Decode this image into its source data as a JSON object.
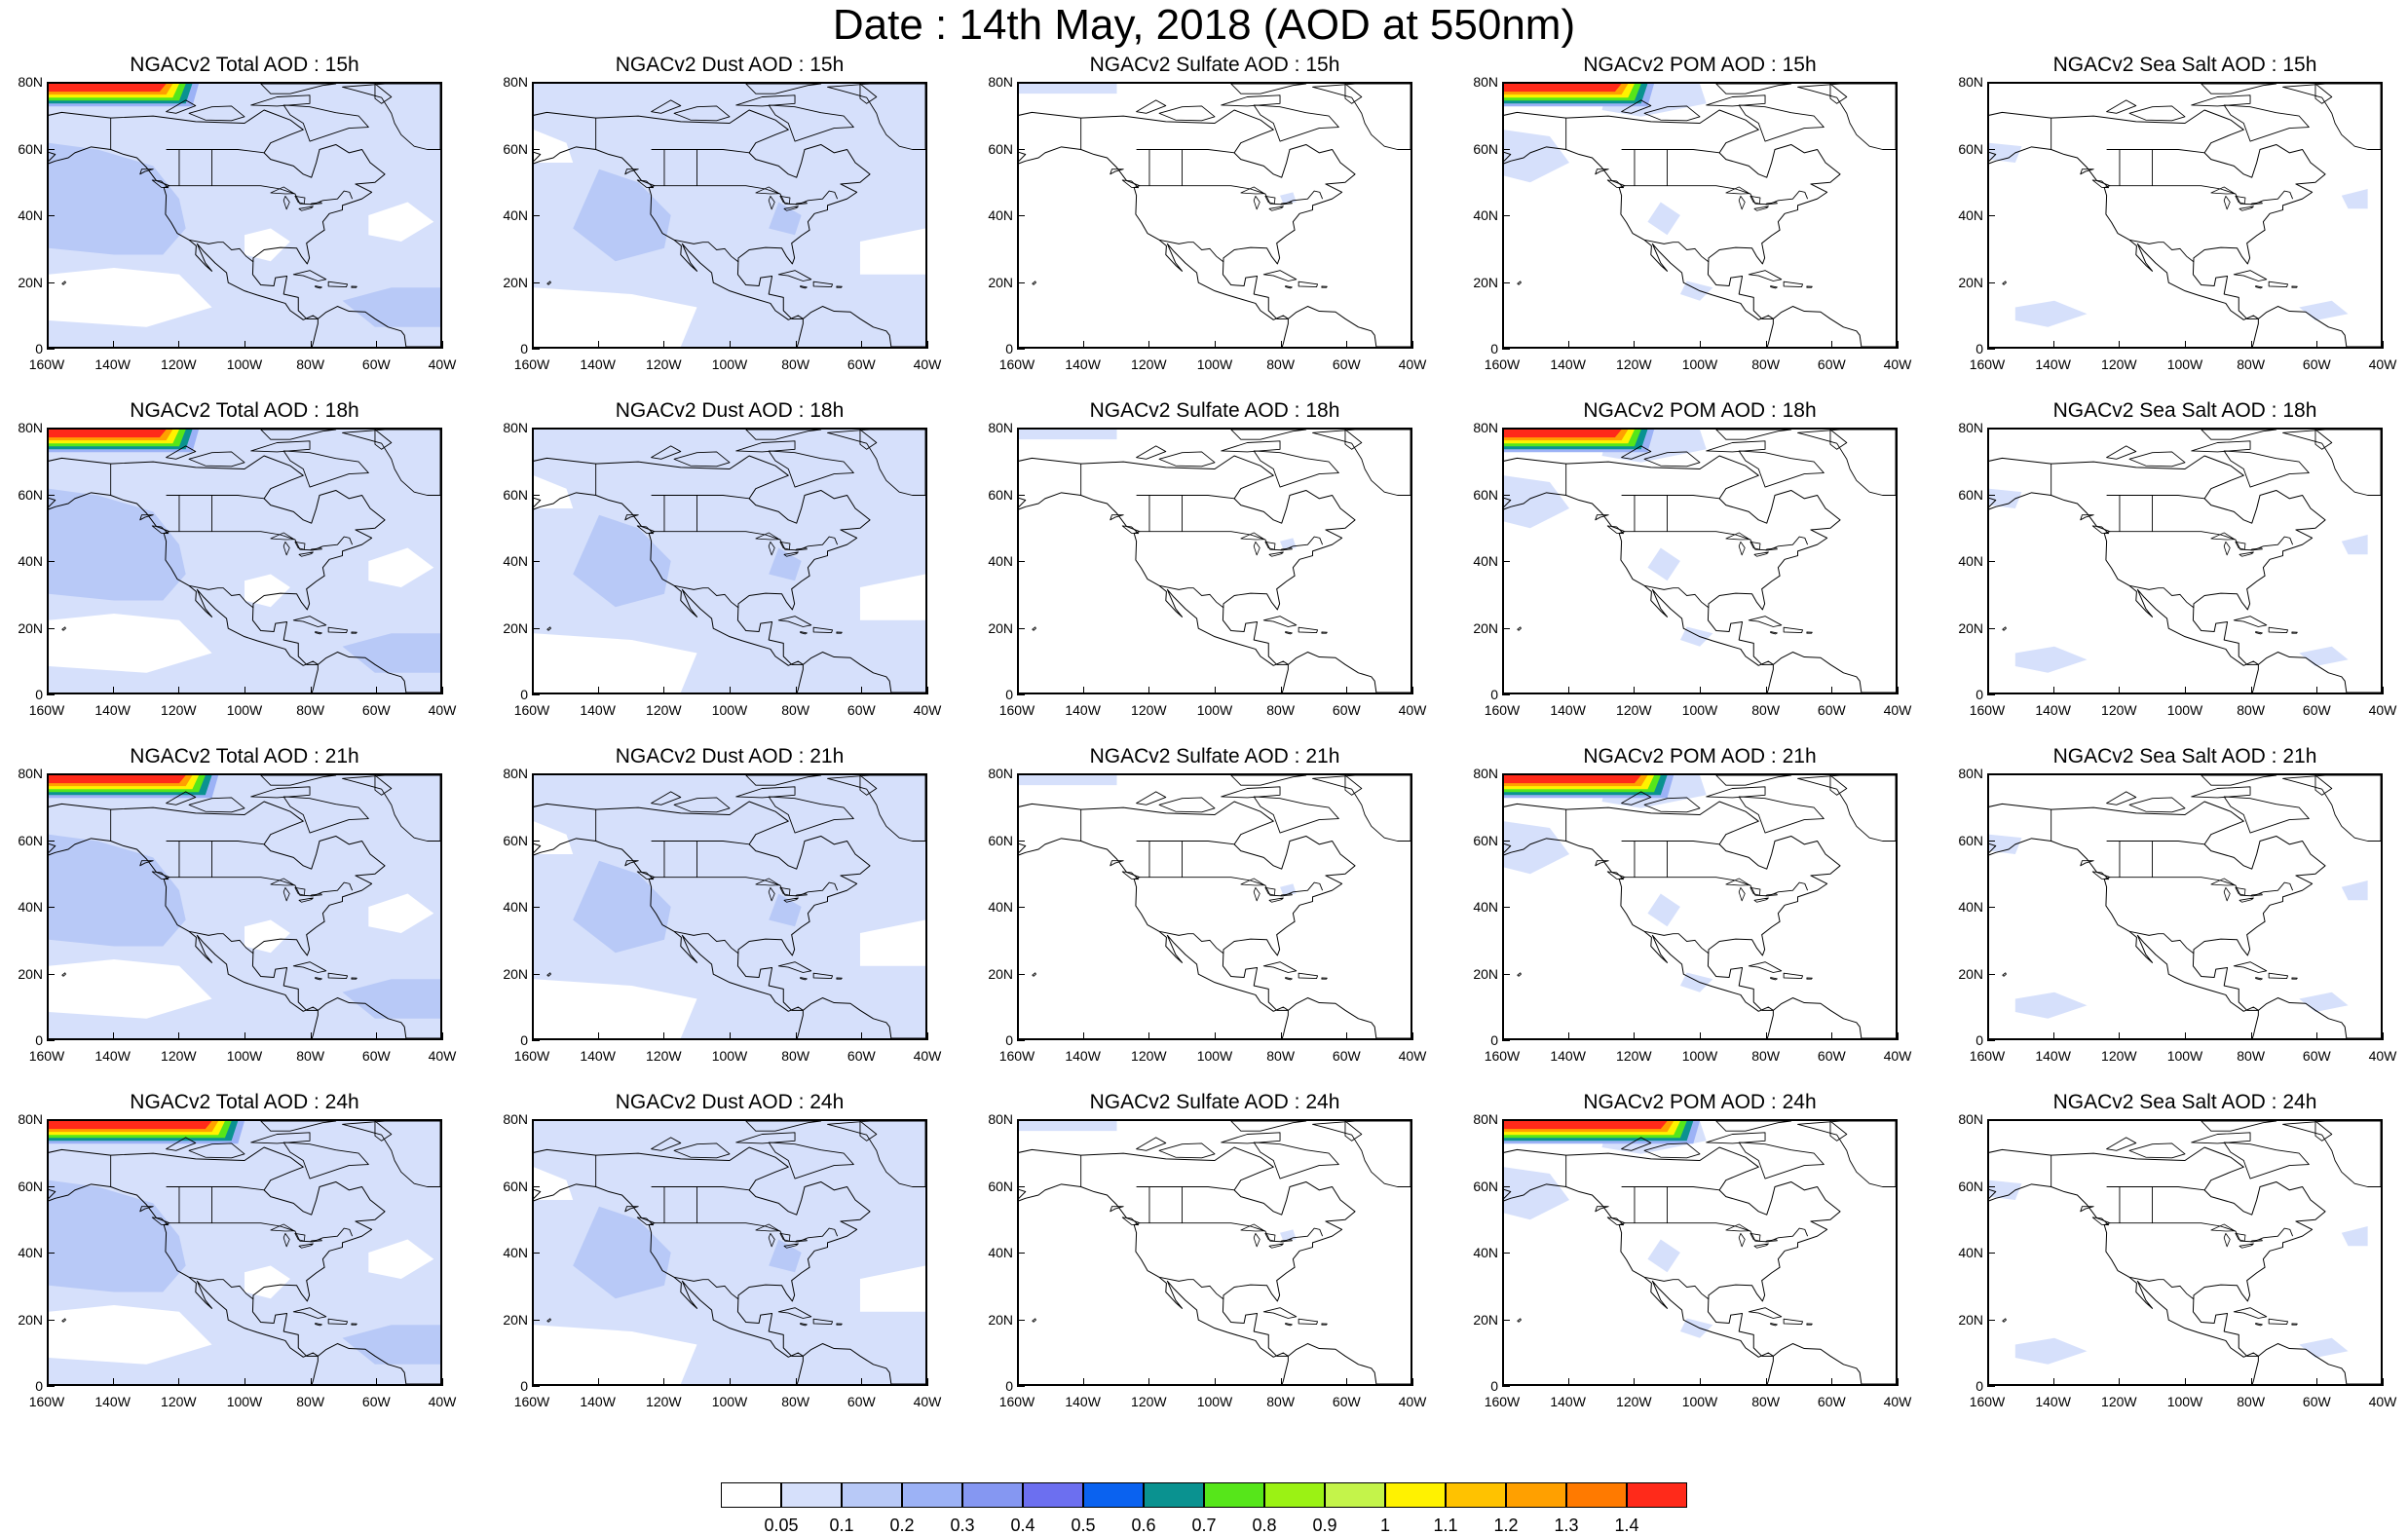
{
  "title": "Date : 14th May, 2018 (AOD at 550nm)",
  "lat_labels": [
    "80N",
    "60N",
    "40N",
    "20N",
    "0"
  ],
  "lon_labels": [
    "160W",
    "140W",
    "120W",
    "100W",
    "80W",
    "60W",
    "40W"
  ],
  "panels": [
    {
      "title": "NGACv2 Total AOD : 15h",
      "variable": "total",
      "hour": 15
    },
    {
      "title": "NGACv2 Dust AOD : 15h",
      "variable": "dust",
      "hour": 15
    },
    {
      "title": "NGACv2 Sulfate AOD : 15h",
      "variable": "sulfate",
      "hour": 15
    },
    {
      "title": "NGACv2 POM AOD : 15h",
      "variable": "pom",
      "hour": 15
    },
    {
      "title": "NGACv2 Sea Salt AOD : 15h",
      "variable": "seasalt",
      "hour": 15
    },
    {
      "title": "NGACv2 Total AOD : 18h",
      "variable": "total",
      "hour": 18
    },
    {
      "title": "NGACv2 Dust AOD : 18h",
      "variable": "dust",
      "hour": 18
    },
    {
      "title": "NGACv2 Sulfate AOD : 18h",
      "variable": "sulfate",
      "hour": 18
    },
    {
      "title": "NGACv2 POM AOD : 18h",
      "variable": "pom",
      "hour": 18
    },
    {
      "title": "NGACv2 Sea Salt AOD : 18h",
      "variable": "seasalt",
      "hour": 18
    },
    {
      "title": "NGACv2 Total AOD : 21h",
      "variable": "total",
      "hour": 21
    },
    {
      "title": "NGACv2 Dust AOD : 21h",
      "variable": "dust",
      "hour": 21
    },
    {
      "title": "NGACv2 Sulfate AOD : 21h",
      "variable": "sulfate",
      "hour": 21
    },
    {
      "title": "NGACv2 POM AOD : 21h",
      "variable": "pom",
      "hour": 21
    },
    {
      "title": "NGACv2 Sea Salt AOD : 21h",
      "variable": "seasalt",
      "hour": 21
    },
    {
      "title": "NGACv2 Total AOD : 24h",
      "variable": "total",
      "hour": 24
    },
    {
      "title": "NGACv2 Dust AOD : 24h",
      "variable": "dust",
      "hour": 24
    },
    {
      "title": "NGACv2 Sulfate AOD : 24h",
      "variable": "sulfate",
      "hour": 24
    },
    {
      "title": "NGACv2 POM AOD : 24h",
      "variable": "pom",
      "hour": 24
    },
    {
      "title": "NGACv2 Sea Salt  AOD : 24h",
      "variable": "seasalt",
      "hour": 24
    }
  ],
  "colorbar": {
    "colors": [
      "#ffffff",
      "#d6e0fb",
      "#b8c9f7",
      "#9cb2f6",
      "#8597f2",
      "#6c6ff0",
      "#0a62f0",
      "#0a9290",
      "#56e61a",
      "#9bf214",
      "#c4f44a",
      "#fff200",
      "#ffc200",
      "#ffa000",
      "#ff7a00",
      "#ff2a1a"
    ],
    "labels": [
      "0.05",
      "0.1",
      "0.2",
      "0.3",
      "0.4",
      "0.5",
      "0.6",
      "0.7",
      "0.8",
      "0.9",
      "1",
      "1.1",
      "1.2",
      "1.3",
      "1.4"
    ]
  },
  "colors": {
    "land_outline": "#000000",
    "low_aod": "#d6e0fb",
    "mid_aod": "#b8c9f7",
    "higher_aod": "#9cb2f6",
    "plume_core": "#ff2a1a"
  }
}
